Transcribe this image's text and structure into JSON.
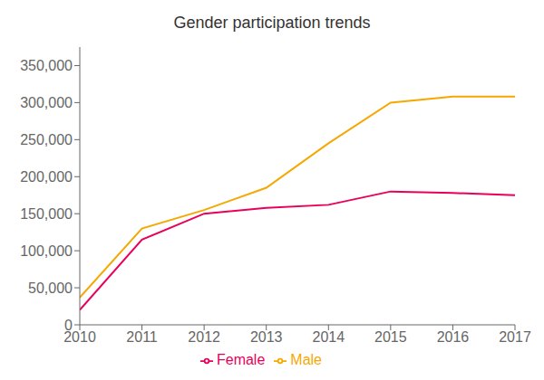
{
  "chart_data": {
    "type": "line",
    "title": "Gender participation trends",
    "x": [
      2010,
      2011,
      2012,
      2013,
      2014,
      2015,
      2016,
      2017
    ],
    "xlim": [
      2010,
      2017
    ],
    "xticks": [
      2010,
      2011,
      2012,
      2013,
      2014,
      2015,
      2016,
      2017
    ],
    "ylim": [
      0,
      375000
    ],
    "yticks": [
      0,
      {
        "value": 50000,
        "label": "50,000"
      },
      {
        "value": 100000,
        "label": "100,000"
      },
      {
        "value": 150000,
        "label": "150,000"
      },
      {
        "value": 200000,
        "label": "200,000"
      },
      {
        "value": 250000,
        "label": "250,000"
      },
      {
        "value": 300000,
        "label": "300,000"
      },
      {
        "value": 350000,
        "label": "350,000"
      }
    ],
    "series": [
      {
        "name": "Female",
        "color": "#e8005a",
        "values": [
          20000,
          115000,
          150000,
          158000,
          162000,
          180000,
          178000,
          175000
        ]
      },
      {
        "name": "Male",
        "color": "#f5a800",
        "values": [
          37000,
          130000,
          155000,
          185000,
          245000,
          300000,
          308000,
          308000
        ]
      }
    ],
    "grid": false,
    "legend": "bottom"
  }
}
